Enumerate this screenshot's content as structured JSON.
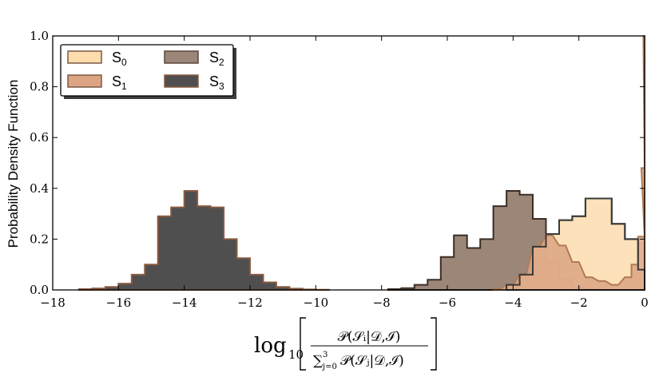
{
  "chart_data": {
    "type": "histogram",
    "ylabel": "Probability Density Function",
    "xlabel": {
      "prefix": "log",
      "base": "10",
      "numerator": "𝒫(𝒮ᵢ|𝒟,ℐ)",
      "denominator_sum": "∑",
      "denominator_upper": "3",
      "denominator_lower": "j=0",
      "denominator_term": "𝒫(𝒮ⱼ|𝒟,ℐ)"
    },
    "xlim": [
      -18,
      0
    ],
    "ylim": [
      0,
      1.0
    ],
    "xticks": [
      "−18",
      "−16",
      "−14",
      "−12",
      "−10",
      "−8",
      "−6",
      "−4",
      "−2",
      "0"
    ],
    "yticks": [
      "0.0",
      "0.2",
      "0.4",
      "0.6",
      "0.8",
      "1.0"
    ],
    "legend": {
      "placement": "top-left",
      "items": [
        {
          "label": "S",
          "sub": "0"
        },
        {
          "label": "S",
          "sub": "1"
        },
        {
          "label": "S",
          "sub": "2"
        },
        {
          "label": "S",
          "sub": "3"
        }
      ]
    },
    "series": [
      {
        "name": "S3",
        "fill": "#4f4f4f",
        "bins": [
          [
            -17.2,
            0.003
          ],
          [
            -16.8,
            0.006
          ],
          [
            -16.4,
            0.012
          ],
          [
            -16.0,
            0.025
          ],
          [
            -15.6,
            0.06
          ],
          [
            -15.2,
            0.1
          ],
          [
            -14.8,
            0.29
          ],
          [
            -14.4,
            0.325
          ],
          [
            -14.0,
            0.39
          ],
          [
            -13.6,
            0.33
          ],
          [
            -13.2,
            0.325
          ],
          [
            -12.8,
            0.2
          ],
          [
            -12.4,
            0.125
          ],
          [
            -12.0,
            0.06
          ],
          [
            -11.6,
            0.03
          ],
          [
            -11.2,
            0.012
          ],
          [
            -10.8,
            0.005
          ],
          [
            -10.4,
            0.002
          ],
          [
            -10.0,
            0.001
          ]
        ],
        "bin_width": 0.4
      },
      {
        "name": "S2",
        "fill": "#9c8678",
        "bins": [
          [
            -7.8,
            0.003
          ],
          [
            -7.4,
            0.007
          ],
          [
            -7.0,
            0.02
          ],
          [
            -6.6,
            0.04
          ],
          [
            -6.2,
            0.13
          ],
          [
            -5.8,
            0.215
          ],
          [
            -5.4,
            0.165
          ],
          [
            -5.0,
            0.2
          ],
          [
            -4.6,
            0.33
          ],
          [
            -4.2,
            0.39
          ],
          [
            -3.8,
            0.375
          ],
          [
            -3.4,
            0.28
          ],
          [
            -3.0,
            0.11
          ],
          [
            -2.6,
            0.04
          ],
          [
            -2.2,
            0.01
          ],
          [
            -1.8,
            0.003
          ]
        ],
        "bin_width": 0.4
      },
      {
        "name": "S0",
        "fill": "#fddcae",
        "bins": [
          [
            -4.2,
            0.02
          ],
          [
            -3.8,
            0.06
          ],
          [
            -3.4,
            0.17
          ],
          [
            -3.0,
            0.22
          ],
          [
            -2.6,
            0.275
          ],
          [
            -2.2,
            0.29
          ],
          [
            -1.8,
            0.36
          ],
          [
            -1.4,
            0.36
          ],
          [
            -1.0,
            0.26
          ],
          [
            -0.6,
            0.2
          ],
          [
            -0.2,
            0.08
          ]
        ],
        "bin_width": 0.4
      },
      {
        "name": "S1",
        "fill": "#dca483",
        "bins": [
          [
            -4.6,
            0.003
          ],
          [
            -4.2,
            0.02
          ],
          [
            -3.8,
            0.06
          ],
          [
            -3.4,
            0.17
          ],
          [
            -3.0,
            0.215
          ],
          [
            -2.6,
            0.175
          ],
          [
            -2.2,
            0.11
          ],
          [
            -1.8,
            0.05
          ],
          [
            -1.4,
            0.035
          ],
          [
            -1.0,
            0.02
          ],
          [
            -0.6,
            0.05
          ],
          [
            -0.4,
            0.1
          ],
          [
            -0.2,
            0.21
          ],
          [
            -0.1,
            0.48
          ],
          [
            -0.04,
            1.0
          ]
        ],
        "bin_width": 0.2
      },
      {
        "name": "S3-outline",
        "fill": "none",
        "outline_of": "S0",
        "stroke": "#3a3a3a"
      }
    ]
  }
}
